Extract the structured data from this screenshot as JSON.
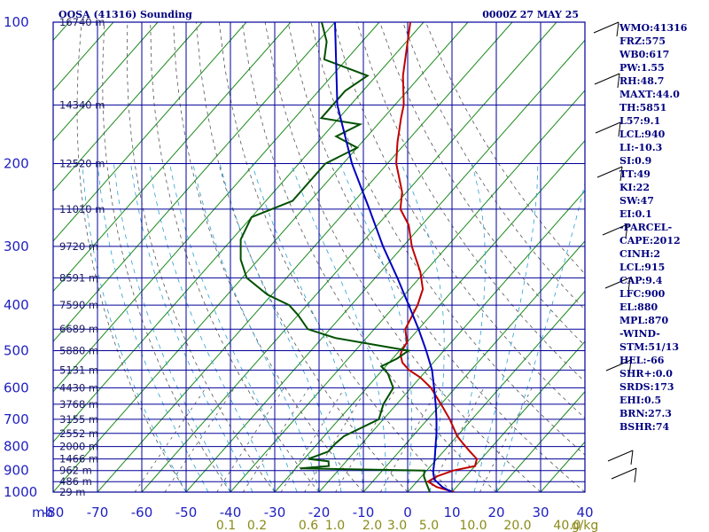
{
  "title_left": "OOSA (41316) Sounding",
  "title_right": "0000Z 27 MAY 25",
  "unit_label": "mb",
  "colors": {
    "grid": "#000099",
    "isotherm": "#1a8a1a",
    "dry_adiabat": "#555555",
    "moist_adiabat": "#2aa0d0",
    "temperature": "#c00000",
    "dewpoint": "#005000",
    "parcel": "#0000c0",
    "text": "#000080"
  },
  "chart_data": {
    "type": "line",
    "title": "OOSA (41316) Sounding",
    "subtitle": "0000Z 27 MAY 25",
    "ylabel": "mb",
    "pressure_ticks": [
      "100",
      "200",
      "300",
      "400",
      "500",
      "600",
      "700",
      "800",
      "900",
      "1000"
    ],
    "temperature_ticks": [
      "-80",
      "-70",
      "-60",
      "-50",
      "-40",
      "-30",
      "-20",
      "-10",
      "0",
      "10",
      "20",
      "30",
      "40"
    ],
    "mixing_ratio_labels": [
      "0.1",
      "0.2",
      "0.6",
      "1.0",
      "2.0",
      "3.0",
      "5.0",
      "10.0",
      "20.0",
      "40.0",
      "g/kg"
    ],
    "heights": [
      {
        "p": 100,
        "label": "16740 m"
      },
      {
        "p": 150,
        "label": "14340 m"
      },
      {
        "p": 200,
        "label": "12520 m"
      },
      {
        "p": 250,
        "label": "11010 m"
      },
      {
        "p": 300,
        "label": "9720 m"
      },
      {
        "p": 350,
        "label": "8591 m"
      },
      {
        "p": 400,
        "label": "7590 m"
      },
      {
        "p": 450,
        "label": "6689 m"
      },
      {
        "p": 500,
        "label": "5880 m"
      },
      {
        "p": 550,
        "label": "5131 m"
      },
      {
        "p": 600,
        "label": "4430 m"
      },
      {
        "p": 650,
        "label": "3768 m"
      },
      {
        "p": 700,
        "label": "3155 m"
      },
      {
        "p": 750,
        "label": "2552 m"
      },
      {
        "p": 800,
        "label": "2000 m"
      },
      {
        "p": 850,
        "label": "1466 m"
      },
      {
        "p": 900,
        "label": "962 m"
      },
      {
        "p": 950,
        "label": "486 m"
      },
      {
        "p": 1000,
        "label": "29 m"
      }
    ],
    "series": [
      {
        "name": "Temperature",
        "points": [
          [
            1000,
            30.5
          ],
          [
            975,
            25.5
          ],
          [
            950,
            22.5
          ],
          [
            925,
            23.5
          ],
          [
            900,
            26
          ],
          [
            880,
            30
          ],
          [
            850,
            29
          ],
          [
            820,
            26
          ],
          [
            790,
            23
          ],
          [
            760,
            20
          ],
          [
            700,
            15
          ],
          [
            650,
            10
          ],
          [
            600,
            4.5
          ],
          [
            570,
            0
          ],
          [
            550,
            -4
          ],
          [
            530,
            -7
          ],
          [
            510,
            -9
          ],
          [
            500,
            -9.5
          ],
          [
            480,
            -10
          ],
          [
            450,
            -13
          ],
          [
            400,
            -15
          ],
          [
            370,
            -17
          ],
          [
            340,
            -21
          ],
          [
            300,
            -28
          ],
          [
            270,
            -33
          ],
          [
            250,
            -38
          ],
          [
            230,
            -41
          ],
          [
            200,
            -48
          ],
          [
            180,
            -52
          ],
          [
            160,
            -56
          ],
          [
            150,
            -58
          ],
          [
            130,
            -64
          ],
          [
            100,
            -73
          ]
        ]
      },
      {
        "name": "Dewpoint",
        "points": [
          [
            1000,
            25
          ],
          [
            950,
            22
          ],
          [
            925,
            20.5
          ],
          [
            900,
            19.5
          ],
          [
            890,
            -9
          ],
          [
            880,
            -3
          ],
          [
            860,
            -4
          ],
          [
            850,
            -9
          ],
          [
            820,
            -6
          ],
          [
            790,
            -6
          ],
          [
            760,
            -5.5
          ],
          [
            700,
            -1
          ],
          [
            650,
            -3
          ],
          [
            600,
            -4
          ],
          [
            580,
            -6
          ],
          [
            560,
            -8
          ],
          [
            540,
            -11
          ],
          [
            520,
            -9
          ],
          [
            500,
            -8
          ],
          [
            470,
            -27
          ],
          [
            450,
            -35
          ],
          [
            420,
            -40
          ],
          [
            400,
            -44
          ],
          [
            380,
            -51
          ],
          [
            350,
            -59
          ],
          [
            320,
            -64
          ],
          [
            290,
            -68
          ],
          [
            260,
            -70
          ],
          [
            240,
            -64
          ],
          [
            200,
            -64
          ],
          [
            185,
            -60
          ],
          [
            175,
            -67
          ],
          [
            165,
            -64
          ],
          [
            160,
            -74
          ],
          [
            140,
            -74
          ],
          [
            130,
            -72
          ],
          [
            120,
            -85
          ],
          [
            110,
            -88
          ],
          [
            100,
            -93
          ]
        ]
      },
      {
        "name": "Parcel",
        "points": [
          [
            1000,
            30
          ],
          [
            975,
            26.8
          ],
          [
            940,
            23.5
          ],
          [
            915,
            22.2
          ],
          [
            900,
            21.5
          ],
          [
            850,
            19.5
          ],
          [
            800,
            17.2
          ],
          [
            750,
            14.8
          ],
          [
            700,
            12
          ],
          [
            650,
            8.8
          ],
          [
            600,
            5.2
          ],
          [
            550,
            1.2
          ],
          [
            500,
            -4
          ],
          [
            450,
            -10
          ],
          [
            400,
            -17
          ],
          [
            350,
            -25
          ],
          [
            300,
            -34.5
          ],
          [
            250,
            -45
          ],
          [
            200,
            -58
          ],
          [
            150,
            -73
          ],
          [
            100,
            -90
          ]
        ]
      }
    ]
  },
  "indices": [
    "WMO:41316",
    "FRZ:575",
    "WB0:617",
    "PW:1.55",
    "RH:48.7",
    "MAXT:44.0",
    "TH:5851",
    "L57:9.1",
    "LCL:940",
    "LI:-10.3",
    "SI:0.9",
    "TT:49",
    "KI:22",
    "SW:47",
    "EI:0.1",
    "-PARCEL-",
    "CAPE:2012",
    "CINH:2",
    "LCL:915",
    "CAP:9.4",
    "LFC:900",
    "EL:880",
    "MPL:870",
    "-WIND-",
    "STM:51/13",
    "HEL:-66",
    "SHR+:0.0",
    "SRDS:173",
    "EHI:0.5",
    "BRN:27.3",
    "BSHR:74"
  ]
}
